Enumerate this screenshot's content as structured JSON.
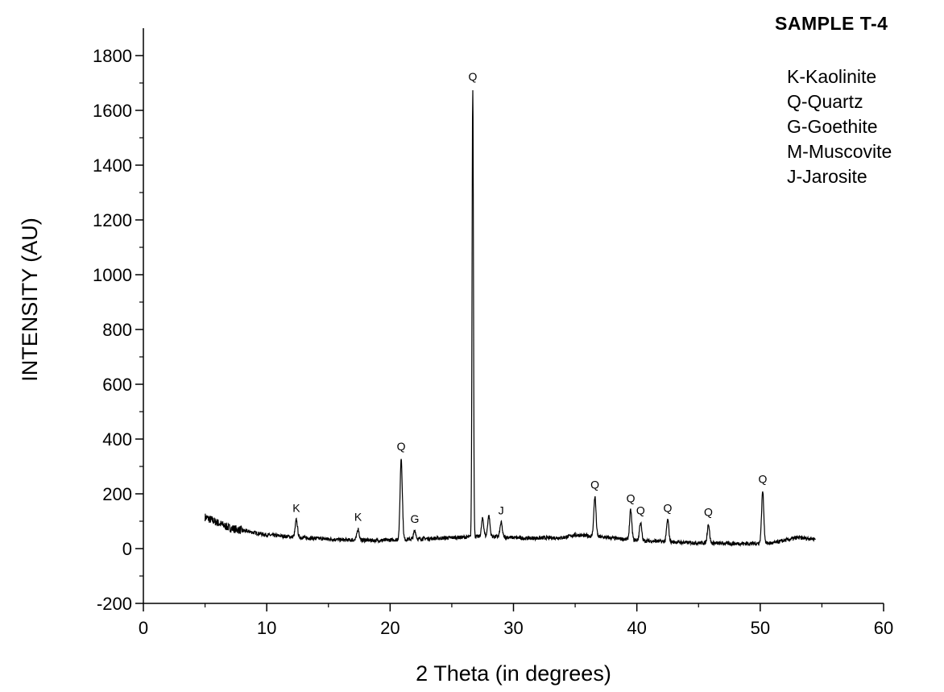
{
  "chart_data": {
    "type": "line",
    "title": "SAMPLE T-4",
    "xlabel": "2 Theta (in degrees)",
    "ylabel": "INTENSITY (AU)",
    "xlim": [
      0,
      60
    ],
    "ylim": [
      -200,
      1900
    ],
    "x_ticks": [
      0,
      10,
      20,
      30,
      40,
      50,
      60
    ],
    "y_ticks": [
      -200,
      0,
      200,
      400,
      600,
      800,
      1000,
      1200,
      1400,
      1600,
      1800
    ],
    "grid": false,
    "legend_position": "top-right",
    "legend": [
      "K-Kaolinite",
      "Q-Quartz",
      "G-Goethite",
      "M-Muscovite",
      "J-Jarosite"
    ],
    "x_range": [
      5,
      54.5
    ],
    "baseline": [
      [
        5,
        115
      ],
      [
        7,
        75
      ],
      [
        10,
        50
      ],
      [
        13,
        40
      ],
      [
        16,
        32
      ],
      [
        19,
        30
      ],
      [
        22,
        35
      ],
      [
        25,
        40
      ],
      [
        28,
        45
      ],
      [
        31,
        38
      ],
      [
        34,
        40
      ],
      [
        35,
        50
      ],
      [
        36.5,
        45
      ],
      [
        40,
        30
      ],
      [
        44,
        22
      ],
      [
        48,
        18
      ],
      [
        51,
        20
      ],
      [
        53,
        40
      ],
      [
        54.5,
        35
      ]
    ],
    "peaks": [
      {
        "x": 12.4,
        "y": 105,
        "label": "K"
      },
      {
        "x": 17.4,
        "y": 72,
        "label": "K"
      },
      {
        "x": 20.9,
        "y": 330,
        "label": "Q"
      },
      {
        "x": 22.0,
        "y": 65,
        "label": "G"
      },
      {
        "x": 26.7,
        "y": 1680,
        "label": "Q"
      },
      {
        "x": 27.5,
        "y": 110,
        "label": ""
      },
      {
        "x": 28.0,
        "y": 120,
        "label": ""
      },
      {
        "x": 29.0,
        "y": 95,
        "label": "J"
      },
      {
        "x": 36.6,
        "y": 190,
        "label": "Q"
      },
      {
        "x": 39.5,
        "y": 140,
        "label": "Q"
      },
      {
        "x": 40.3,
        "y": 95,
        "label": "Q"
      },
      {
        "x": 42.5,
        "y": 105,
        "label": "Q"
      },
      {
        "x": 45.8,
        "y": 90,
        "label": "Q"
      },
      {
        "x": 50.2,
        "y": 210,
        "label": "Q"
      }
    ]
  }
}
